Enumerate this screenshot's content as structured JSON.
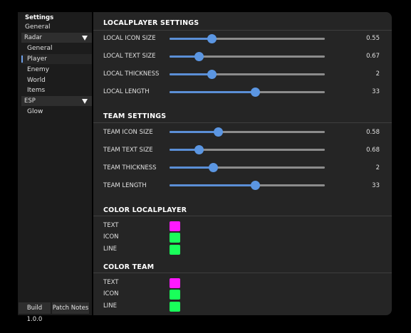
{
  "sidebar": {
    "title": "Settings",
    "items": [
      {
        "kind": "top",
        "label": "General"
      },
      {
        "kind": "section",
        "label": "Radar"
      },
      {
        "kind": "sub",
        "label": "General"
      },
      {
        "kind": "sub",
        "label": "Player",
        "active": true
      },
      {
        "kind": "sub",
        "label": "Enemy"
      },
      {
        "kind": "sub",
        "label": "World"
      },
      {
        "kind": "sub",
        "label": "Items"
      },
      {
        "kind": "section",
        "label": "ESP"
      },
      {
        "kind": "sub",
        "label": "Glow"
      }
    ],
    "build_label": "Build 1.0.0",
    "patch_notes_label": "Patch Notes"
  },
  "local_settings": {
    "title": "LOCALPLAYER SETTINGS",
    "sliders": [
      {
        "label": "LOCAL ICON SIZE",
        "value": "0.55",
        "fraction": 0.27
      },
      {
        "label": "LOCAL TEXT SIZE",
        "value": "0.67",
        "fraction": 0.19
      },
      {
        "label": "LOCAL THICKNESS",
        "value": "2",
        "fraction": 0.27
      },
      {
        "label": "LOCAL LENGTH",
        "value": "33",
        "fraction": 0.55
      }
    ]
  },
  "team_settings": {
    "title": "TEAM SETTINGS",
    "sliders": [
      {
        "label": "TEAM ICON SIZE",
        "value": "0.58",
        "fraction": 0.31
      },
      {
        "label": "TEAM TEXT SIZE",
        "value": "0.68",
        "fraction": 0.19
      },
      {
        "label": "TEAM THICKNESS",
        "value": "2",
        "fraction": 0.28
      },
      {
        "label": "TEAM LENGTH",
        "value": "33",
        "fraction": 0.55
      }
    ]
  },
  "color_local": {
    "title": "COLOR LOCALPLAYER",
    "rows": [
      {
        "label": "TEXT",
        "color": "#ff19ff"
      },
      {
        "label": "ICON",
        "color": "#19ff5a"
      },
      {
        "label": "LINE",
        "color": "#19ff5a"
      }
    ]
  },
  "color_team": {
    "title": "COLOR TEAM",
    "rows": [
      {
        "label": "TEXT",
        "color": "#ff19ff"
      },
      {
        "label": "ICON",
        "color": "#19ff5a"
      },
      {
        "label": "LINE",
        "color": "#19ff5a"
      }
    ]
  }
}
